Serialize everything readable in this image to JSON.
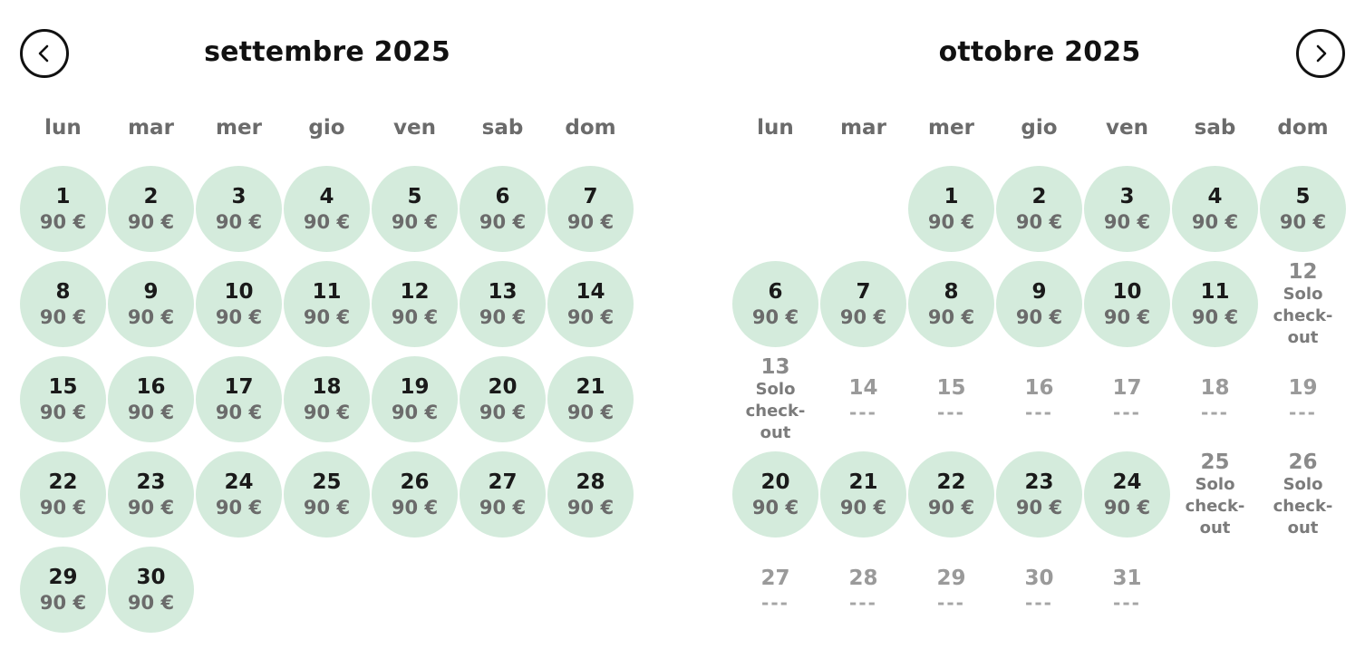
{
  "nav": {
    "prev_icon": "chevron-left-icon",
    "next_icon": "chevron-right-icon"
  },
  "colors": {
    "available_bg": "#d4ebdc",
    "text_dark": "#1a1a1a",
    "text_muted": "#6b6b6b"
  },
  "weekdays": [
    "lun",
    "mar",
    "mer",
    "gio",
    "ven",
    "sab",
    "dom"
  ],
  "months": [
    {
      "title": "settembre 2025",
      "start_weekday": 0,
      "days": [
        {
          "n": "1",
          "s": "avail",
          "p": "90 €"
        },
        {
          "n": "2",
          "s": "avail",
          "p": "90 €"
        },
        {
          "n": "3",
          "s": "avail",
          "p": "90 €"
        },
        {
          "n": "4",
          "s": "avail",
          "p": "90 €"
        },
        {
          "n": "5",
          "s": "avail",
          "p": "90 €"
        },
        {
          "n": "6",
          "s": "avail",
          "p": "90 €"
        },
        {
          "n": "7",
          "s": "avail",
          "p": "90 €"
        },
        {
          "n": "8",
          "s": "avail",
          "p": "90 €"
        },
        {
          "n": "9",
          "s": "avail",
          "p": "90 €"
        },
        {
          "n": "10",
          "s": "avail",
          "p": "90 €"
        },
        {
          "n": "11",
          "s": "avail",
          "p": "90 €"
        },
        {
          "n": "12",
          "s": "avail",
          "p": "90 €"
        },
        {
          "n": "13",
          "s": "avail",
          "p": "90 €"
        },
        {
          "n": "14",
          "s": "avail",
          "p": "90 €"
        },
        {
          "n": "15",
          "s": "avail",
          "p": "90 €"
        },
        {
          "n": "16",
          "s": "avail",
          "p": "90 €"
        },
        {
          "n": "17",
          "s": "avail",
          "p": "90 €"
        },
        {
          "n": "18",
          "s": "avail",
          "p": "90 €"
        },
        {
          "n": "19",
          "s": "avail",
          "p": "90 €"
        },
        {
          "n": "20",
          "s": "avail",
          "p": "90 €"
        },
        {
          "n": "21",
          "s": "avail",
          "p": "90 €"
        },
        {
          "n": "22",
          "s": "avail",
          "p": "90 €"
        },
        {
          "n": "23",
          "s": "avail",
          "p": "90 €"
        },
        {
          "n": "24",
          "s": "avail",
          "p": "90 €"
        },
        {
          "n": "25",
          "s": "avail",
          "p": "90 €"
        },
        {
          "n": "26",
          "s": "avail",
          "p": "90 €"
        },
        {
          "n": "27",
          "s": "avail",
          "p": "90 €"
        },
        {
          "n": "28",
          "s": "avail",
          "p": "90 €"
        },
        {
          "n": "29",
          "s": "avail",
          "p": "90 €"
        },
        {
          "n": "30",
          "s": "avail",
          "p": "90 €"
        }
      ]
    },
    {
      "title": "ottobre 2025",
      "start_weekday": 2,
      "days": [
        {
          "n": "1",
          "s": "avail",
          "p": "90 €"
        },
        {
          "n": "2",
          "s": "avail",
          "p": "90 €"
        },
        {
          "n": "3",
          "s": "avail",
          "p": "90 €"
        },
        {
          "n": "4",
          "s": "avail",
          "p": "90 €"
        },
        {
          "n": "5",
          "s": "avail",
          "p": "90 €"
        },
        {
          "n": "6",
          "s": "avail",
          "p": "90 €"
        },
        {
          "n": "7",
          "s": "avail",
          "p": "90 €"
        },
        {
          "n": "8",
          "s": "avail",
          "p": "90 €"
        },
        {
          "n": "9",
          "s": "avail",
          "p": "90 €"
        },
        {
          "n": "10",
          "s": "avail",
          "p": "90 €"
        },
        {
          "n": "11",
          "s": "avail",
          "p": "90 €"
        },
        {
          "n": "12",
          "s": "checkout",
          "lines": [
            "Solo",
            "check-",
            "out"
          ]
        },
        {
          "n": "13",
          "s": "checkout",
          "lines": [
            "Solo",
            "check-",
            "out"
          ]
        },
        {
          "n": "14",
          "s": "unavail",
          "p": "---"
        },
        {
          "n": "15",
          "s": "unavail",
          "p": "---"
        },
        {
          "n": "16",
          "s": "unavail",
          "p": "---"
        },
        {
          "n": "17",
          "s": "unavail",
          "p": "---"
        },
        {
          "n": "18",
          "s": "unavail",
          "p": "---"
        },
        {
          "n": "19",
          "s": "unavail",
          "p": "---"
        },
        {
          "n": "20",
          "s": "avail",
          "p": "90 €"
        },
        {
          "n": "21",
          "s": "avail",
          "p": "90 €"
        },
        {
          "n": "22",
          "s": "avail",
          "p": "90 €"
        },
        {
          "n": "23",
          "s": "avail",
          "p": "90 €"
        },
        {
          "n": "24",
          "s": "avail",
          "p": "90 €"
        },
        {
          "n": "25",
          "s": "checkout",
          "lines": [
            "Solo",
            "check-",
            "out"
          ]
        },
        {
          "n": "26",
          "s": "checkout",
          "lines": [
            "Solo",
            "check-",
            "out"
          ]
        },
        {
          "n": "27",
          "s": "unavail",
          "p": "---"
        },
        {
          "n": "28",
          "s": "unavail",
          "p": "---"
        },
        {
          "n": "29",
          "s": "unavail",
          "p": "---"
        },
        {
          "n": "30",
          "s": "unavail",
          "p": "---"
        },
        {
          "n": "31",
          "s": "unavail",
          "p": "---"
        }
      ]
    }
  ]
}
